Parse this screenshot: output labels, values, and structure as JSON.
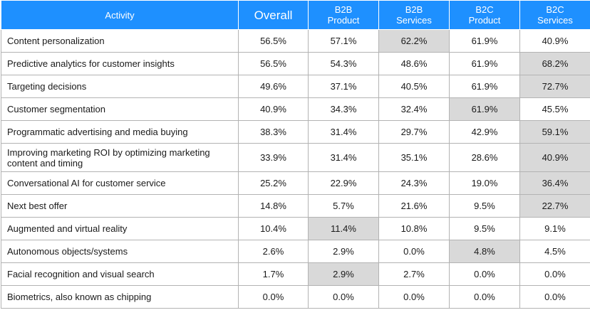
{
  "colors": {
    "header_bg": "#1e90ff",
    "highlight": "#d9d9d9",
    "border": "#b3b3b3"
  },
  "chart_data": {
    "type": "table",
    "columns": [
      {
        "label": "Activity"
      },
      {
        "label": "Overall"
      },
      {
        "line1": "B2B",
        "line2": "Product"
      },
      {
        "line1": "B2B",
        "line2": "Services"
      },
      {
        "line1": "B2C",
        "line2": "Product"
      },
      {
        "line1": "B2C",
        "line2": "Services"
      }
    ],
    "rows": [
      {
        "activity": "Content personalization",
        "values": [
          "56.5%",
          "57.1%",
          "62.2%",
          "61.9%",
          "40.9%"
        ],
        "highlight": [
          2
        ]
      },
      {
        "activity": "Predictive analytics for customer insights",
        "values": [
          "56.5%",
          "54.3%",
          "48.6%",
          "61.9%",
          "68.2%"
        ],
        "highlight": [
          4
        ]
      },
      {
        "activity": "Targeting decisions",
        "values": [
          "49.6%",
          "37.1%",
          "40.5%",
          "61.9%",
          "72.7%"
        ],
        "highlight": [
          4
        ]
      },
      {
        "activity": "Customer segmentation",
        "values": [
          "40.9%",
          "34.3%",
          "32.4%",
          "61.9%",
          "45.5%"
        ],
        "highlight": [
          3
        ]
      },
      {
        "activity": "Programmatic advertising and media buying",
        "values": [
          "38.3%",
          "31.4%",
          "29.7%",
          "42.9%",
          "59.1%"
        ],
        "highlight": [
          4
        ]
      },
      {
        "activity": "Improving marketing ROI by optimizing marketing content and timing",
        "values": [
          "33.9%",
          "31.4%",
          "35.1%",
          "28.6%",
          "40.9%"
        ],
        "highlight": [
          4
        ]
      },
      {
        "activity": "Conversational AI for customer service",
        "values": [
          "25.2%",
          "22.9%",
          "24.3%",
          "19.0%",
          "36.4%"
        ],
        "highlight": [
          4
        ]
      },
      {
        "activity": "Next best offer",
        "values": [
          "14.8%",
          "5.7%",
          "21.6%",
          "9.5%",
          "22.7%"
        ],
        "highlight": [
          4
        ]
      },
      {
        "activity": "Augmented and virtual reality",
        "values": [
          "10.4%",
          "11.4%",
          "10.8%",
          "9.5%",
          "9.1%"
        ],
        "highlight": [
          1
        ]
      },
      {
        "activity": "Autonomous objects/systems",
        "values": [
          "2.6%",
          "2.9%",
          "0.0%",
          "4.8%",
          "4.5%"
        ],
        "highlight": [
          3
        ]
      },
      {
        "activity": "Facial recognition and visual search",
        "values": [
          "1.7%",
          "2.9%",
          "2.7%",
          "0.0%",
          "0.0%"
        ],
        "highlight": [
          1
        ]
      },
      {
        "activity": "Biometrics, also known as chipping",
        "values": [
          "0.0%",
          "0.0%",
          "0.0%",
          "0.0%",
          "0.0%"
        ],
        "highlight": []
      }
    ]
  }
}
